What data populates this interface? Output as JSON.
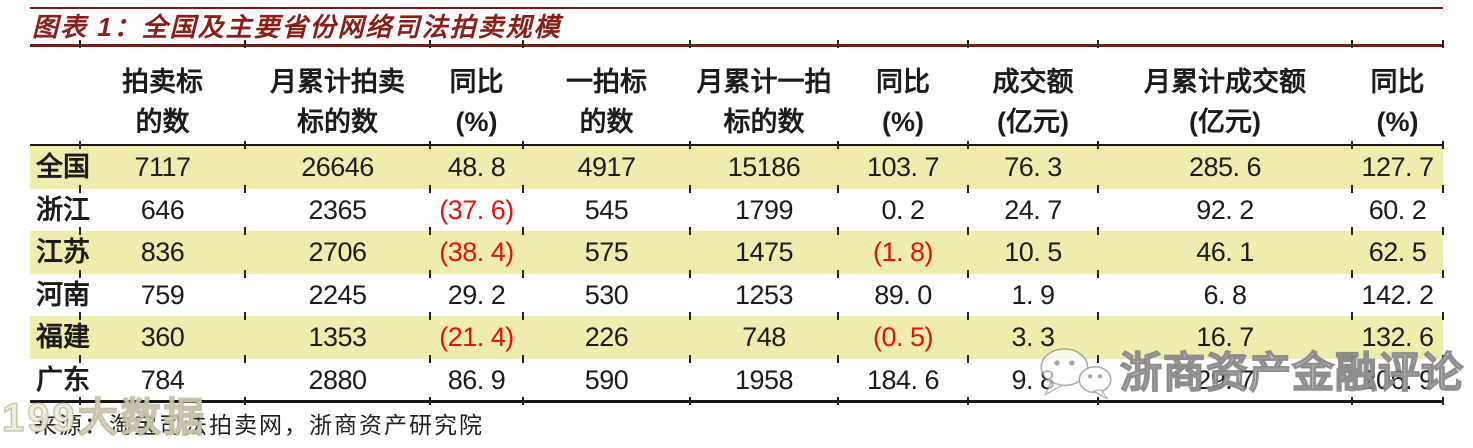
{
  "title": "图表 1：全国及主要省份网络司法拍卖规模",
  "source": "来源：淘宝司法拍卖网，浙商资产研究院",
  "watermarks": {
    "right_icon": "wechat-icon",
    "right_text": "浙商资产金融评论",
    "bottom_left_text": "199大数据"
  },
  "colors": {
    "accent_maroon": "#7b1a16",
    "title_red": "#8a1f1a",
    "row_highlight": "#efedad",
    "negative_red": "#e8100c",
    "text": "#1c1c1c"
  },
  "table": {
    "header": [
      {
        "line1": "",
        "line2": ""
      },
      {
        "line1": "拍卖标",
        "line2": "的数"
      },
      {
        "line1": "月累计拍卖",
        "line2": "标的数"
      },
      {
        "line1": "同比",
        "line2": "(%)"
      },
      {
        "line1": "一拍标",
        "line2": "的数"
      },
      {
        "line1": "月累计一拍",
        "line2": "标的数"
      },
      {
        "line1": "同比",
        "line2": "(%)"
      },
      {
        "line1": "成交额",
        "line2": "(亿元)"
      },
      {
        "line1": "月累计成交额",
        "line2": "(亿元)"
      },
      {
        "line1": "同比",
        "line2": "(%)"
      }
    ],
    "rows": [
      {
        "label": "全国",
        "highlight": true,
        "cells": [
          {
            "text": "7117"
          },
          {
            "text": "26646"
          },
          {
            "text": "48. 8"
          },
          {
            "text": "4917"
          },
          {
            "text": "15186"
          },
          {
            "text": "103. 7"
          },
          {
            "text": "76. 3"
          },
          {
            "text": "285. 6"
          },
          {
            "text": "127. 7"
          }
        ]
      },
      {
        "label": "浙江",
        "highlight": false,
        "cells": [
          {
            "text": "646"
          },
          {
            "text": "2365"
          },
          {
            "text": "(37. 6)",
            "negative": true
          },
          {
            "text": "545"
          },
          {
            "text": "1799"
          },
          {
            "text": "0. 2"
          },
          {
            "text": "24. 7"
          },
          {
            "text": "92. 2"
          },
          {
            "text": "60. 2"
          }
        ]
      },
      {
        "label": "江苏",
        "highlight": true,
        "cells": [
          {
            "text": "836"
          },
          {
            "text": "2706"
          },
          {
            "text": "(38. 4)",
            "negative": true
          },
          {
            "text": "575"
          },
          {
            "text": "1475"
          },
          {
            "text": "(1. 8)",
            "negative": true
          },
          {
            "text": "10. 5"
          },
          {
            "text": "46. 1"
          },
          {
            "text": "62. 5"
          }
        ]
      },
      {
        "label": "河南",
        "highlight": false,
        "cells": [
          {
            "text": "759"
          },
          {
            "text": "2245"
          },
          {
            "text": "29. 2"
          },
          {
            "text": "530"
          },
          {
            "text": "1253"
          },
          {
            "text": "89. 0"
          },
          {
            "text": "1. 9"
          },
          {
            "text": "6. 8"
          },
          {
            "text": "142. 2"
          }
        ]
      },
      {
        "label": "福建",
        "highlight": true,
        "cells": [
          {
            "text": "360"
          },
          {
            "text": "1353"
          },
          {
            "text": "(21. 4)",
            "negative": true
          },
          {
            "text": "226"
          },
          {
            "text": "748"
          },
          {
            "text": "(0. 5)",
            "negative": true
          },
          {
            "text": "3. 3"
          },
          {
            "text": "16. 7"
          },
          {
            "text": "132. 6"
          }
        ]
      },
      {
        "label": "广东",
        "highlight": false,
        "cells": [
          {
            "text": "784"
          },
          {
            "text": "2880"
          },
          {
            "text": "86. 9"
          },
          {
            "text": "590"
          },
          {
            "text": "1958"
          },
          {
            "text": "184. 6"
          },
          {
            "text": "9. 8"
          },
          {
            "text": "29. 7"
          },
          {
            "text": "206. 9"
          }
        ]
      }
    ]
  },
  "chart_data": {
    "type": "table",
    "title": "图表 1：全国及主要省份网络司法拍卖规模",
    "columns": [
      "",
      "拍卖标的数",
      "月累计拍卖标的数",
      "同比(%)",
      "一拍标的数",
      "月累计一拍标的数",
      "同比(%)",
      "成交额(亿元)",
      "月累计成交额(亿元)",
      "同比(%)"
    ],
    "rows": [
      [
        "全国",
        7117,
        26646,
        48.8,
        4917,
        15186,
        103.7,
        76.3,
        285.6,
        127.7
      ],
      [
        "浙江",
        646,
        2365,
        -37.6,
        545,
        1799,
        0.2,
        24.7,
        92.2,
        60.2
      ],
      [
        "江苏",
        836,
        2706,
        -38.4,
        575,
        1475,
        -1.8,
        10.5,
        46.1,
        62.5
      ],
      [
        "河南",
        759,
        2245,
        29.2,
        530,
        1253,
        89.0,
        1.9,
        6.8,
        142.2
      ],
      [
        "福建",
        360,
        1353,
        -21.4,
        226,
        748,
        -0.5,
        3.3,
        16.7,
        132.6
      ],
      [
        "广东",
        784,
        2880,
        86.9,
        590,
        1958,
        184.6,
        9.8,
        29.7,
        206.9
      ]
    ],
    "source": "来源：淘宝司法拍卖网，浙商资产研究院"
  }
}
